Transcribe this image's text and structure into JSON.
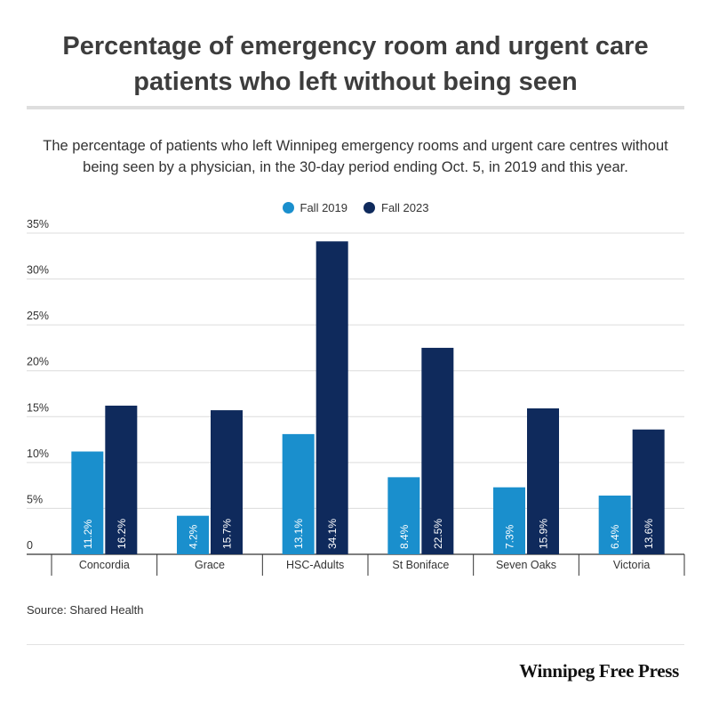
{
  "title": "Percentage of emergency room and urgent care patients who left without being seen",
  "subtitle": "The percentage of patients who left Winnipeg emergency rooms and urgent care centres without being seen by a physician, in the 30-day period ending Oct. 5, in 2019 and this year.",
  "source": "Source: Shared Health",
  "brand": "Winnipeg Free Press",
  "colors": {
    "fall_2019": "#1a8fcd",
    "fall_2023": "#0f2a5c",
    "grid": "#dcdcdc",
    "axis": "#333333"
  },
  "chart_data": {
    "type": "bar",
    "categories": [
      "Concordia",
      "Grace",
      "HSC-Adults",
      "St Boniface",
      "Seven Oaks",
      "Victoria"
    ],
    "series": [
      {
        "name": "Fall 2019",
        "values": [
          11.2,
          4.2,
          13.1,
          8.4,
          7.3,
          6.4
        ],
        "labels": [
          "11.2%",
          "4.2%",
          "13.1%",
          "8.4%",
          "7.3%",
          "6.4%"
        ]
      },
      {
        "name": "Fall 2023",
        "values": [
          16.2,
          15.7,
          34.1,
          22.5,
          15.9,
          13.6
        ],
        "labels": [
          "16.2%",
          "15.7%",
          "34.1%",
          "22.5%",
          "15.9%",
          "13.6%"
        ]
      }
    ],
    "yticks": [
      "0",
      "5%",
      "10%",
      "15%",
      "20%",
      "25%",
      "30%",
      "35%"
    ],
    "ylim": [
      0,
      35
    ],
    "grid": true,
    "legend": "top-center",
    "data_labels": "inside-bar-vertical"
  }
}
